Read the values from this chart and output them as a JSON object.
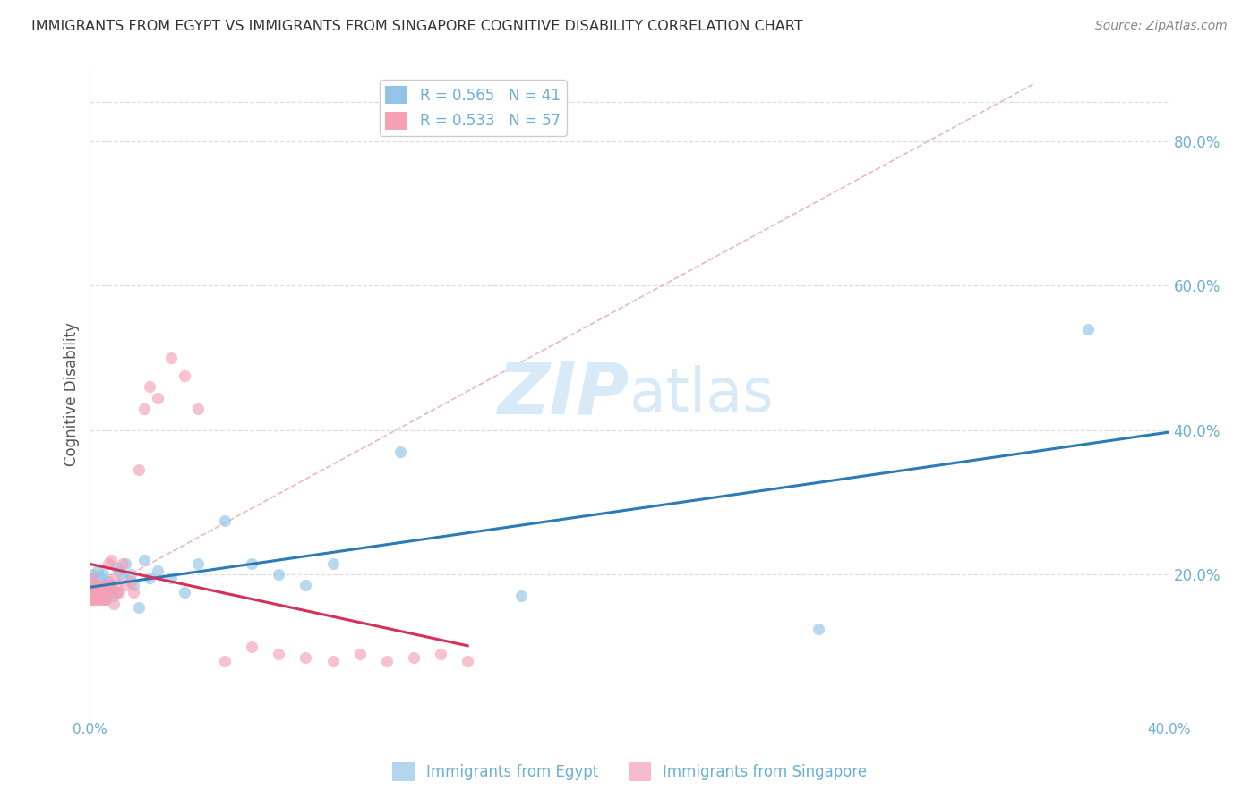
{
  "title": "IMMIGRANTS FROM EGYPT VS IMMIGRANTS FROM SINGAPORE COGNITIVE DISABILITY CORRELATION CHART",
  "source": "Source: ZipAtlas.com",
  "ylabel": "Cognitive Disability",
  "xmin": 0.0,
  "xmax": 0.4,
  "ymin": 0.0,
  "ymax": 0.9,
  "right_yticks": [
    0.2,
    0.4,
    0.6,
    0.8
  ],
  "right_yticklabels": [
    "20.0%",
    "40.0%",
    "60.0%",
    "80.0%"
  ],
  "xticks": [
    0.0,
    0.05,
    0.1,
    0.15,
    0.2,
    0.25,
    0.3,
    0.35,
    0.4
  ],
  "legend_entries": [
    {
      "label": "R = 0.565   N = 41",
      "color": "#aac4e8"
    },
    {
      "label": "R = 0.533   N = 57",
      "color": "#f4a0b0"
    }
  ],
  "egypt_x": [
    0.0005,
    0.001,
    0.001,
    0.001,
    0.002,
    0.002,
    0.003,
    0.003,
    0.004,
    0.004,
    0.005,
    0.005,
    0.005,
    0.006,
    0.006,
    0.007,
    0.008,
    0.009,
    0.01,
    0.01,
    0.011,
    0.012,
    0.013,
    0.015,
    0.016,
    0.018,
    0.02,
    0.022,
    0.025,
    0.03,
    0.035,
    0.04,
    0.05,
    0.06,
    0.07,
    0.08,
    0.09,
    0.115,
    0.16,
    0.27,
    0.37
  ],
  "egypt_y": [
    0.175,
    0.195,
    0.2,
    0.18,
    0.175,
    0.185,
    0.205,
    0.185,
    0.17,
    0.195,
    0.175,
    0.185,
    0.2,
    0.175,
    0.165,
    0.19,
    0.185,
    0.17,
    0.21,
    0.175,
    0.205,
    0.195,
    0.215,
    0.2,
    0.185,
    0.155,
    0.22,
    0.195,
    0.205,
    0.195,
    0.175,
    0.215,
    0.275,
    0.215,
    0.2,
    0.185,
    0.215,
    0.37,
    0.17,
    0.125,
    0.54
  ],
  "singapore_x": [
    0.0003,
    0.0005,
    0.0005,
    0.0008,
    0.001,
    0.001,
    0.001,
    0.001,
    0.002,
    0.002,
    0.002,
    0.002,
    0.003,
    0.003,
    0.003,
    0.004,
    0.004,
    0.004,
    0.005,
    0.005,
    0.005,
    0.005,
    0.006,
    0.006,
    0.006,
    0.007,
    0.007,
    0.007,
    0.008,
    0.008,
    0.008,
    0.009,
    0.009,
    0.01,
    0.01,
    0.011,
    0.012,
    0.013,
    0.015,
    0.016,
    0.018,
    0.02,
    0.022,
    0.025,
    0.03,
    0.035,
    0.04,
    0.05,
    0.06,
    0.07,
    0.08,
    0.09,
    0.1,
    0.11,
    0.12,
    0.13,
    0.14
  ],
  "singapore_y": [
    0.175,
    0.18,
    0.17,
    0.165,
    0.195,
    0.185,
    0.175,
    0.165,
    0.185,
    0.175,
    0.165,
    0.175,
    0.185,
    0.175,
    0.165,
    0.17,
    0.18,
    0.165,
    0.185,
    0.175,
    0.165,
    0.18,
    0.175,
    0.185,
    0.165,
    0.215,
    0.175,
    0.185,
    0.175,
    0.22,
    0.185,
    0.195,
    0.16,
    0.175,
    0.185,
    0.175,
    0.215,
    0.185,
    0.19,
    0.175,
    0.345,
    0.43,
    0.46,
    0.445,
    0.5,
    0.475,
    0.43,
    0.08,
    0.1,
    0.09,
    0.085,
    0.08,
    0.09,
    0.08,
    0.085,
    0.09,
    0.08
  ],
  "egypt_color": "#93c4e8",
  "singapore_color": "#f4a0b5",
  "egypt_line_color": "#2c7bb6",
  "singapore_line_color": "#d4315a",
  "ref_line_color": "#e8b0b8",
  "ref_line_style": "--",
  "background_color": "#ffffff",
  "grid_color": "#dddddd",
  "title_color": "#333333",
  "axis_label_color": "#555555",
  "right_tick_color": "#6baed6",
  "watermark_zip": "ZIP",
  "watermark_atlas": "atlas",
  "watermark_color": "#d8eaf7"
}
